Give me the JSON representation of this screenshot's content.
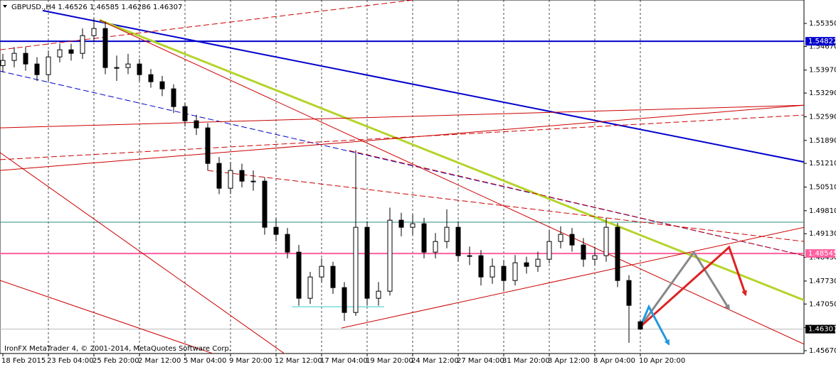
{
  "chart_data": {
    "type": "candlestick",
    "title": "GBPUSD.,H4  1.46526 1.46585 1.46286 1.46307",
    "footer": "IronFX MetaTrader 4, © 2001-2014, MetaQuotes Software Corp.",
    "categories": [
      "18 Feb 2015",
      null,
      null,
      null,
      "23 Feb 04:00",
      null,
      null,
      null,
      "25 Feb 20:00",
      null,
      null,
      null,
      "2 Mar 12:00",
      null,
      null,
      null,
      "5 Mar 04:00",
      null,
      null,
      null,
      "9 Mar 20:00",
      null,
      null,
      null,
      "12 Mar 12:00",
      null,
      null,
      null,
      "17 Mar 04:00",
      null,
      null,
      null,
      "19 Mar 20:00",
      null,
      null,
      null,
      "24 Mar 12:00",
      null,
      null,
      null,
      "27 Mar 04:00",
      null,
      null,
      null,
      "31 Mar 20:00",
      null,
      null,
      null,
      "3 Apr 12:00",
      null,
      null,
      null,
      "8 Apr 04:00",
      null,
      null,
      null,
      "10 Apr 20:00"
    ],
    "open": [
      1.541,
      1.54255,
      1.54465,
      1.5415,
      1.53835,
      1.5436,
      1.5457,
      1.54465,
      1.5499,
      1.552,
      1.54045,
      1.54045,
      1.5415,
      1.53835,
      1.53625,
      1.53415,
      1.5289,
      1.5247,
      1.5226,
      1.5121,
      1.50475,
      1.51,
      1.50685,
      1.50685,
      1.4932,
      1.4911,
      1.48585,
      1.4722,
      1.4785,
      1.48165,
      1.47535,
      1.468,
      1.4932,
      1.4722,
      1.4743,
      1.4953,
      1.4932,
      1.49425,
      1.48585,
      1.489,
      1.4932,
      1.4848,
      1.4848,
      1.4785,
      1.48165,
      1.47745,
      1.4827,
      1.48165,
      1.48375,
      1.489,
      1.4911,
      1.48795,
      1.48375,
      1.4848,
      1.4932,
      1.47745,
      1.46526
    ],
    "high": [
      1.5445,
      1.5465,
      1.5465,
      1.5435,
      1.5455,
      1.5475,
      1.5475,
      1.552,
      1.555,
      1.554,
      1.544,
      1.5445,
      1.543,
      1.54,
      1.538,
      1.5355,
      1.53,
      1.5265,
      1.524,
      1.514,
      1.5125,
      1.512,
      1.51,
      1.508,
      1.496,
      1.493,
      1.488,
      1.48,
      1.484,
      1.483,
      1.477,
      1.516,
      1.495,
      1.477,
      1.499,
      1.4975,
      1.497,
      1.496,
      1.4915,
      1.4985,
      1.495,
      1.4875,
      1.4865,
      1.484,
      1.4835,
      1.485,
      1.4845,
      1.486,
      1.4925,
      1.4935,
      1.493,
      1.49,
      1.4875,
      1.496,
      1.4945,
      1.479,
      1.46585
    ],
    "low": [
      1.539,
      1.5405,
      1.5395,
      1.5365,
      1.5365,
      1.542,
      1.5425,
      1.543,
      1.548,
      1.5385,
      1.5365,
      1.5385,
      1.5365,
      1.5345,
      1.532,
      1.527,
      1.523,
      1.5205,
      1.51,
      1.503,
      1.503,
      1.505,
      1.504,
      1.491,
      1.489,
      1.484,
      1.47,
      1.4705,
      1.477,
      1.4735,
      1.4655,
      1.467,
      1.47,
      1.47,
      1.473,
      1.4905,
      1.491,
      1.484,
      1.484,
      1.487,
      1.483,
      1.482,
      1.476,
      1.4765,
      1.4745,
      1.476,
      1.4795,
      1.48,
      1.4825,
      1.487,
      1.486,
      1.4815,
      1.482,
      1.483,
      1.4755,
      1.459,
      1.46286
    ],
    "close": [
      1.54255,
      1.54465,
      1.5415,
      1.53835,
      1.5436,
      1.5457,
      1.54465,
      1.5499,
      1.552,
      1.54045,
      1.54045,
      1.5415,
      1.53835,
      1.53625,
      1.53415,
      1.5289,
      1.5247,
      1.5226,
      1.5121,
      1.50475,
      1.51,
      1.50685,
      1.50685,
      1.4932,
      1.4911,
      1.48585,
      1.4722,
      1.4785,
      1.48165,
      1.47535,
      1.468,
      1.4932,
      1.4722,
      1.4743,
      1.4953,
      1.4932,
      1.49425,
      1.48585,
      1.489,
      1.4932,
      1.4848,
      1.4848,
      1.4785,
      1.48165,
      1.47745,
      1.4827,
      1.48165,
      1.48375,
      1.489,
      1.4911,
      1.48795,
      1.48375,
      1.4848,
      1.4932,
      1.47745,
      1.4701,
      1.46307
    ],
    "ylim": [
      1.45586,
      1.56043
    ],
    "yticks": [
      {
        "value": 1.5535,
        "label": "1.55350"
      },
      {
        "value": 1.5467,
        "label": "1.54670"
      },
      {
        "value": 1.5397,
        "label": "1.53970"
      },
      {
        "value": 1.5329,
        "label": "1.53290"
      },
      {
        "value": 1.5259,
        "label": "1.52590"
      },
      {
        "value": 1.5189,
        "label": "1.51890"
      },
      {
        "value": 1.5121,
        "label": "1.51210"
      },
      {
        "value": 1.5051,
        "label": "1.50510"
      },
      {
        "value": 1.4981,
        "label": "1.49810"
      },
      {
        "value": 1.4913,
        "label": "1.49130"
      },
      {
        "value": 1.4843,
        "label": "1.48430"
      },
      {
        "value": 1.4773,
        "label": "1.47730"
      },
      {
        "value": 1.4705,
        "label": "1.47050"
      },
      {
        "value": 1.4635,
        "label": "1.46350"
      },
      {
        "value": 1.4567,
        "label": "1.45670"
      }
    ],
    "price_labels": [
      {
        "value": 1.54822,
        "label": "1.54822",
        "color": "#0000cc"
      },
      {
        "value": 1.48545,
        "label": "1.48545",
        "color": "#ff5fa0"
      },
      {
        "value": 1.46307,
        "label": "1.46307",
        "color": "#000000"
      }
    ],
    "lines": [
      {
        "color": "#0000cc",
        "width": 2,
        "points": [
          [
            -0.25,
            1.54822
          ],
          [
            70.4,
            1.54822
          ]
        ]
      },
      {
        "color": "#ff5fa0",
        "width": 2,
        "points": [
          [
            -0.25,
            1.48545
          ],
          [
            70.4,
            1.48545
          ]
        ]
      },
      {
        "color": "#2e8b80",
        "width": 1,
        "points": [
          [
            -0.25,
            1.4947
          ],
          [
            70.4,
            1.4947
          ]
        ]
      },
      {
        "color": "#bbbbbb",
        "width": 1,
        "points": [
          [
            -0.25,
            1.46307
          ],
          [
            70.4,
            1.46307
          ]
        ]
      },
      {
        "color": "#33cccc",
        "width": 1,
        "points": [
          [
            25.4,
            1.4697
          ],
          [
            33.5,
            1.4697
          ]
        ]
      },
      {
        "color": "#0000cc",
        "width": 2,
        "points": [
          [
            3.5,
            1.5573
          ],
          [
            70.4,
            1.5125
          ]
        ]
      },
      {
        "color": "#0000cc",
        "width": 1,
        "dash": true,
        "points": [
          [
            -0.25,
            1.5394
          ],
          [
            70.4,
            1.4848
          ]
        ]
      },
      {
        "color": "#b4d42a",
        "width": 3,
        "points": [
          [
            8.5,
            1.5545
          ],
          [
            70.4,
            1.4716
          ]
        ]
      },
      {
        "color": "#cc0000",
        "width": 1,
        "points": [
          [
            -0.25,
            1.5226
          ],
          [
            70.4,
            1.5293
          ]
        ]
      },
      {
        "color": "#cc0000",
        "width": 1,
        "points": [
          [
            -0.25,
            1.51
          ],
          [
            70.4,
            1.5293
          ]
        ]
      },
      {
        "color": "#cc0000",
        "width": 1,
        "dash": true,
        "points": [
          [
            -0.25,
            1.5457
          ],
          [
            36,
            1.5604
          ]
        ]
      },
      {
        "color": "#cc0000",
        "width": 1,
        "points": [
          [
            8.5,
            1.5545
          ],
          [
            70.4,
            1.4586
          ]
        ]
      },
      {
        "color": "#cc0000",
        "width": 1,
        "points": [
          [
            -0.25,
            1.5153
          ],
          [
            24.75,
            1.4558
          ]
        ]
      },
      {
        "color": "#cc0000",
        "width": 1,
        "points": [
          [
            -0.25,
            1.4775
          ],
          [
            18.5,
            1.4558
          ]
        ]
      },
      {
        "color": "#cc0000",
        "width": 1,
        "points": [
          [
            29.75,
            1.4634
          ],
          [
            70.4,
            1.4932
          ]
        ]
      },
      {
        "color": "#cc0000",
        "width": 1,
        "dash": true,
        "points": [
          [
            30.4,
            1.5159
          ],
          [
            70.4,
            1.4848
          ]
        ]
      },
      {
        "color": "#cc0000",
        "width": 1,
        "dash": true,
        "points": [
          [
            -0.25,
            1.5132
          ],
          [
            70.4,
            1.5264
          ]
        ]
      },
      {
        "color": "#cc0000",
        "width": 1,
        "dash": true,
        "points": [
          [
            18,
            1.51
          ],
          [
            70.4,
            1.489
          ]
        ]
      },
      {
        "color": "#888888",
        "width": 3,
        "arrow": true,
        "points": [
          [
            56,
            1.4638
          ],
          [
            60.7,
            1.4858
          ],
          [
            63.8,
            1.469
          ]
        ]
      },
      {
        "color": "#dd2222",
        "width": 3,
        "arrow": true,
        "points": [
          [
            56,
            1.4638
          ],
          [
            63.8,
            1.4873
          ],
          [
            65.25,
            1.4732
          ]
        ]
      },
      {
        "color": "#2299dd",
        "width": 3,
        "arrow": true,
        "points": [
          [
            56,
            1.4638
          ],
          [
            56.75,
            1.4697
          ],
          [
            58.5,
            1.4586
          ]
        ]
      }
    ]
  }
}
